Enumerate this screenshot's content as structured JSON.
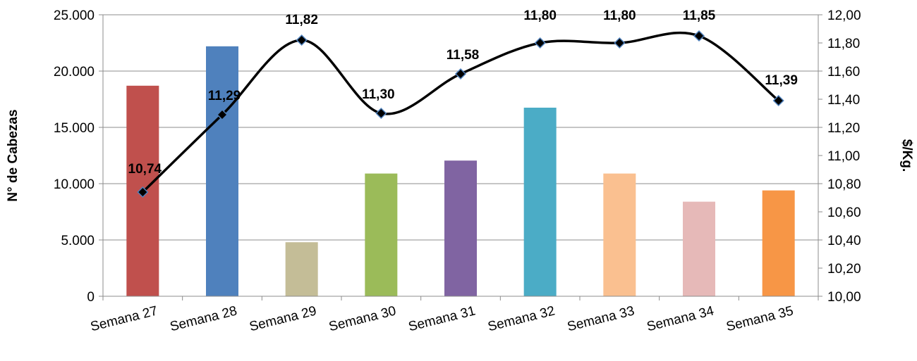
{
  "chart_data": {
    "type": "bar",
    "categories": [
      "Semana 27",
      "Semana 28",
      "Semana 29",
      "Semana 30",
      "Semana 31",
      "Semana 32",
      "Semana 33",
      "Semana 34",
      "Semana 35"
    ],
    "series": [
      {
        "type": "bar",
        "axis": "left",
        "values": [
          18700,
          22200,
          4800,
          10900,
          12050,
          16750,
          10900,
          8400,
          9400
        ],
        "colors": [
          "#c0504d",
          "#4f81bd",
          "#c4bd97",
          "#9bbb59",
          "#8064a2",
          "#4bacc6",
          "#fac090",
          "#e6b9b8",
          "#f79646"
        ]
      },
      {
        "type": "line",
        "axis": "right",
        "values": [
          10.74,
          11.29,
          11.82,
          11.3,
          11.58,
          11.8,
          11.8,
          11.85,
          11.39
        ],
        "labels": [
          "10,74",
          "11,29",
          "11,82",
          "11,30",
          "11,58",
          "11,80",
          "11,80",
          "11,85",
          "11,39"
        ],
        "color": "#000000",
        "marker": "diamond",
        "smooth": true
      }
    ],
    "ylabel_left": "N° de Cabezas",
    "ylabel_right": "$/Kg.",
    "ylim_left": [
      0,
      25000
    ],
    "ylim_right": [
      10.0,
      12.0
    ],
    "yticks_left": [
      "0",
      "5.000",
      "10.000",
      "15.000",
      "20.000",
      "25.000"
    ],
    "yticks_right": [
      "10,00",
      "10,20",
      "10,40",
      "10,60",
      "10,80",
      "11,00",
      "11,20",
      "11,40",
      "11,60",
      "11,80",
      "12,00"
    ],
    "grid": true,
    "legend": "none"
  }
}
